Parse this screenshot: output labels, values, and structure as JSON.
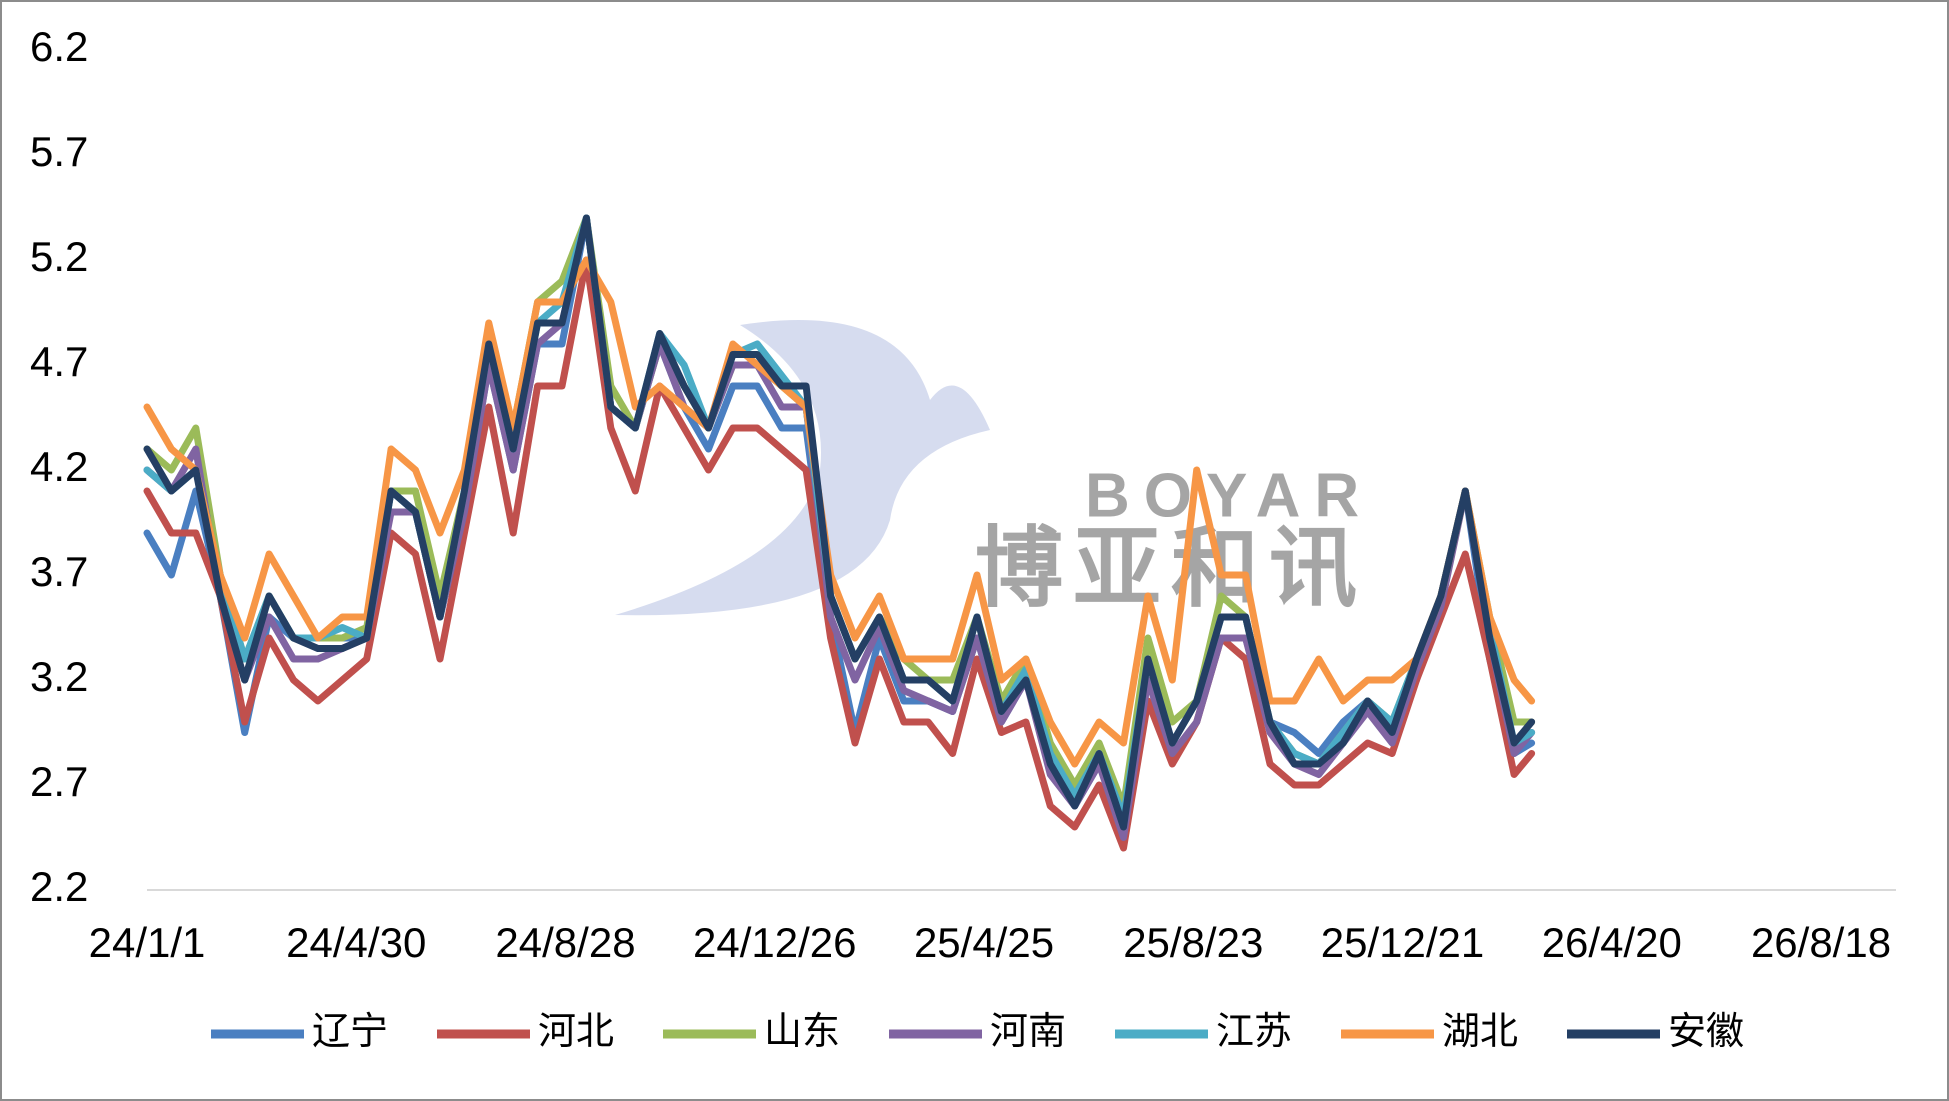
{
  "chart_data": {
    "type": "line",
    "watermark": [
      "BOYAR",
      "博亚和讯"
    ],
    "x": [
      "24/1/1",
      "24/1/15",
      "24/1/29",
      "24/2/12",
      "24/2/26",
      "24/3/11",
      "24/3/25",
      "24/4/8",
      "24/4/22",
      "24/5/6",
      "24/5/20",
      "24/6/3",
      "24/6/17",
      "24/7/1",
      "24/7/15",
      "24/7/29",
      "24/8/12",
      "24/8/26",
      "24/9/9",
      "24/9/23",
      "24/10/7",
      "24/10/21",
      "24/11/4",
      "24/11/18",
      "24/12/2",
      "24/12/16",
      "24/12/30",
      "25/1/13",
      "25/1/27",
      "25/2/10",
      "25/2/24",
      "25/3/10",
      "25/3/24",
      "25/4/7",
      "25/4/21",
      "25/5/5",
      "25/5/19",
      "25/6/2",
      "25/6/16",
      "25/6/30",
      "25/7/14",
      "25/7/28",
      "25/8/11",
      "25/8/25",
      "25/9/8",
      "25/9/22",
      "25/10/6",
      "25/10/20",
      "25/11/3",
      "25/11/17",
      "25/12/1",
      "25/12/15",
      "25/12/29",
      "26/1/12",
      "26/1/26",
      "26/2/9",
      "26/2/23",
      "26/3/5"
    ],
    "series": [
      {
        "name": "辽宁",
        "color": "#4a7fc1",
        "values": [
          3.9,
          3.7,
          4.1,
          3.6,
          2.95,
          3.5,
          3.4,
          3.4,
          3.4,
          3.4,
          4.1,
          4.0,
          3.5,
          4.0,
          4.7,
          4.2,
          4.8,
          4.8,
          5.4,
          4.5,
          4.4,
          4.8,
          4.5,
          4.3,
          4.6,
          4.6,
          4.4,
          4.4,
          3.5,
          2.95,
          3.4,
          3.1,
          3.1,
          3.05,
          3.4,
          3.0,
          3.2,
          2.8,
          2.6,
          2.8,
          2.5,
          3.2,
          2.9,
          3.1,
          3.4,
          3.4,
          3.0,
          2.95,
          2.85,
          3.0,
          3.1,
          3.0,
          3.2,
          3.6,
          4.1,
          3.3,
          2.85,
          2.9
        ]
      },
      {
        "name": "河北",
        "color": "#c0504d",
        "values": [
          4.1,
          3.9,
          3.9,
          3.6,
          3.0,
          3.4,
          3.2,
          3.1,
          3.2,
          3.3,
          3.9,
          3.8,
          3.3,
          3.9,
          4.5,
          3.9,
          4.6,
          4.6,
          5.2,
          4.4,
          4.1,
          4.6,
          4.4,
          4.2,
          4.4,
          4.4,
          4.3,
          4.2,
          3.4,
          2.9,
          3.3,
          3.0,
          3.0,
          2.85,
          3.3,
          2.95,
          3.0,
          2.6,
          2.5,
          2.7,
          2.4,
          3.1,
          2.8,
          3.0,
          3.4,
          3.3,
          2.8,
          2.7,
          2.7,
          2.8,
          2.9,
          2.85,
          3.2,
          3.5,
          3.8,
          3.3,
          2.75,
          2.85
        ]
      },
      {
        "name": "山东",
        "color": "#9bbb59",
        "values": [
          4.3,
          4.2,
          4.4,
          3.7,
          3.3,
          3.6,
          3.4,
          3.4,
          3.4,
          3.45,
          4.1,
          4.1,
          3.6,
          4.1,
          4.8,
          4.4,
          5.0,
          5.1,
          5.4,
          4.6,
          4.4,
          4.8,
          4.6,
          4.4,
          4.7,
          4.7,
          4.6,
          4.5,
          3.6,
          3.3,
          3.5,
          3.3,
          3.2,
          3.2,
          3.5,
          3.1,
          3.3,
          2.9,
          2.7,
          2.9,
          2.6,
          3.4,
          3.0,
          3.1,
          3.6,
          3.5,
          3.0,
          2.85,
          2.8,
          2.95,
          3.1,
          3.0,
          3.3,
          3.6,
          4.1,
          3.5,
          3.0,
          3.0
        ]
      },
      {
        "name": "河南",
        "color": "#8064a2",
        "values": [
          4.2,
          4.1,
          4.3,
          3.6,
          3.2,
          3.5,
          3.3,
          3.3,
          3.35,
          3.4,
          4.0,
          4.0,
          3.5,
          4.0,
          4.7,
          4.2,
          4.8,
          4.9,
          5.4,
          4.5,
          4.4,
          4.8,
          4.5,
          4.4,
          4.7,
          4.7,
          4.5,
          4.5,
          3.5,
          3.2,
          3.45,
          3.15,
          3.1,
          3.05,
          3.4,
          3.0,
          3.2,
          2.75,
          2.6,
          2.8,
          2.45,
          3.2,
          2.85,
          3.0,
          3.4,
          3.4,
          2.95,
          2.8,
          2.75,
          2.9,
          3.05,
          2.9,
          3.25,
          3.55,
          4.1,
          3.4,
          2.85,
          2.95
        ]
      },
      {
        "name": "江苏",
        "color": "#4bacc6",
        "values": [
          4.2,
          4.1,
          4.2,
          3.7,
          3.3,
          3.6,
          3.4,
          3.4,
          3.45,
          3.4,
          4.1,
          4.0,
          3.5,
          4.1,
          4.8,
          4.3,
          4.9,
          5.0,
          5.4,
          4.5,
          4.4,
          4.85,
          4.7,
          4.4,
          4.75,
          4.8,
          4.65,
          4.5,
          3.6,
          3.3,
          3.5,
          3.2,
          3.2,
          3.1,
          3.5,
          3.05,
          3.25,
          2.85,
          2.65,
          2.85,
          2.55,
          3.3,
          2.9,
          3.1,
          3.5,
          3.5,
          3.0,
          2.85,
          2.8,
          2.95,
          3.1,
          3.0,
          3.3,
          3.6,
          4.1,
          3.45,
          2.9,
          2.95
        ]
      },
      {
        "name": "湖北",
        "color": "#f79646",
        "values": [
          4.5,
          4.3,
          4.2,
          3.7,
          3.4,
          3.8,
          3.6,
          3.4,
          3.5,
          3.5,
          4.3,
          4.2,
          3.9,
          4.2,
          4.9,
          4.4,
          5.0,
          5.0,
          5.2,
          5.0,
          4.5,
          4.6,
          4.5,
          4.4,
          4.8,
          4.7,
          4.6,
          4.5,
          3.7,
          3.4,
          3.6,
          3.3,
          3.3,
          3.3,
          3.7,
          3.2,
          3.3,
          3.0,
          2.8,
          3.0,
          2.9,
          3.6,
          3.2,
          4.2,
          3.7,
          3.7,
          3.1,
          3.1,
          3.3,
          3.1,
          3.2,
          3.2,
          3.3,
          3.6,
          4.1,
          3.5,
          3.2,
          3.1
        ]
      },
      {
        "name": "安徽",
        "color": "#243f64",
        "values": [
          4.3,
          4.1,
          4.2,
          3.6,
          3.2,
          3.6,
          3.4,
          3.35,
          3.35,
          3.4,
          4.1,
          4.0,
          3.5,
          4.1,
          4.8,
          4.3,
          4.9,
          4.9,
          5.4,
          4.5,
          4.4,
          4.85,
          4.6,
          4.4,
          4.75,
          4.75,
          4.6,
          4.6,
          3.6,
          3.3,
          3.5,
          3.2,
          3.2,
          3.1,
          3.5,
          3.05,
          3.2,
          2.8,
          2.6,
          2.85,
          2.5,
          3.3,
          2.9,
          3.1,
          3.5,
          3.5,
          3.0,
          2.8,
          2.8,
          2.9,
          3.1,
          2.95,
          3.3,
          3.6,
          4.1,
          3.4,
          2.9,
          3.0
        ]
      }
    ],
    "xlim": [
      "24/1/1",
      "26/9/30"
    ],
    "xticks": [
      "24/1/1",
      "24/4/30",
      "24/8/28",
      "24/12/26",
      "25/4/25",
      "25/8/23",
      "25/12/21",
      "26/4/20",
      "26/8/18"
    ],
    "ylim": [
      2.2,
      6.2
    ],
    "yticks": [
      2.2,
      2.7,
      3.2,
      3.7,
      4.2,
      4.7,
      5.2,
      5.7,
      6.2
    ],
    "grid": false,
    "legend": "bottom"
  }
}
